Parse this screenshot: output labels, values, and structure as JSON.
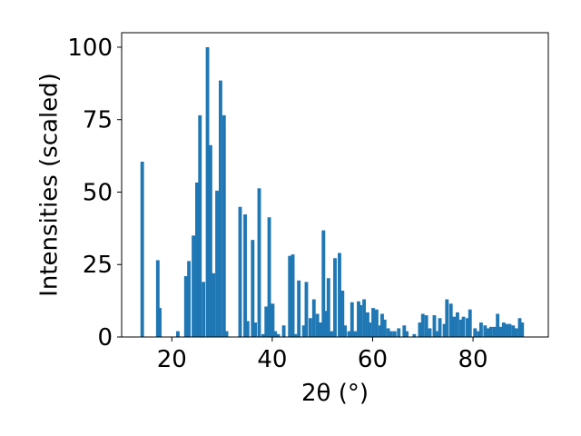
{
  "chart_data": {
    "type": "bar",
    "title": "",
    "xlabel": "2θ (°)",
    "ylabel": "Intensities (scaled)",
    "xlim": [
      10,
      95
    ],
    "ylim": [
      0,
      105
    ],
    "xticks": [
      20,
      40,
      60,
      80
    ],
    "yticks": [
      0,
      25,
      50,
      75,
      100
    ],
    "grid": false,
    "bar_color": "#1f77b4",
    "bar_width": 0.7,
    "x": [
      14.1,
      17.2,
      17.6,
      21.2,
      22.8,
      23.4,
      24.3,
      25.0,
      25.6,
      26.3,
      27.1,
      27.7,
      28.3,
      29.0,
      29.7,
      30.4,
      30.9,
      33.6,
      34.6,
      35.1,
      36.1,
      36.6,
      37.4,
      38.2,
      38.8,
      39.4,
      40.1,
      40.6,
      41.2,
      42.3,
      43.5,
      44.1,
      44.6,
      45.3,
      46.3,
      46.8,
      47.6,
      48.3,
      49.0,
      49.6,
      50.2,
      50.8,
      51.2,
      51.8,
      52.5,
      53.4,
      54.0,
      54.5,
      55.3,
      55.9,
      56.5,
      57.2,
      57.6,
      58.3,
      59.0,
      59.4,
      60.1,
      60.8,
      61.5,
      61.9,
      62.4,
      63.1,
      63.7,
      64.4,
      65.2,
      66.3,
      66.8,
      68.3,
      69.4,
      70.0,
      70.7,
      71.4,
      72.3,
      72.9,
      73.4,
      74.3,
      74.8,
      75.6,
      76.2,
      76.9,
      77.6,
      78.1,
      78.9,
      79.4,
      80.4,
      81.1,
      81.6,
      82.4,
      83.0,
      83.6,
      84.3,
      84.9,
      85.5,
      86.1,
      86.6,
      87.3,
      88.0,
      88.6,
      89.3,
      89.8
    ],
    "values": [
      60.5,
      26.5,
      10,
      2,
      21,
      26.2,
      35,
      53.3,
      76.5,
      19,
      100,
      66.2,
      22,
      50.5,
      88.5,
      76.5,
      2,
      44.9,
      42.3,
      5.5,
      33.5,
      5,
      51.3,
      1,
      10.5,
      41.3,
      11.5,
      2,
      1,
      4,
      28,
      28.5,
      1,
      19.5,
      4,
      19,
      6.5,
      13,
      8,
      5,
      36.8,
      9,
      20.3,
      2,
      27.2,
      29,
      16,
      4,
      2,
      12,
      2,
      12.3,
      11,
      13,
      8.5,
      5,
      10,
      9.5,
      4,
      8,
      6,
      3,
      2,
      2,
      3,
      4,
      2,
      1,
      5,
      8,
      7.5,
      3,
      7.5,
      2,
      6.5,
      4.5,
      13,
      11.5,
      7,
      8.5,
      6,
      7,
      6.5,
      9.5,
      3,
      2,
      5,
      4,
      3,
      3.5,
      3.5,
      8,
      3.5,
      5,
      4.5,
      4.5,
      4,
      3,
      6.5,
      5
    ]
  }
}
